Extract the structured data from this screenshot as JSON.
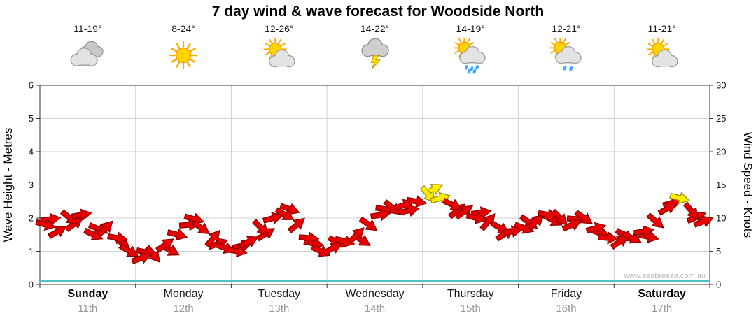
{
  "title": "7 day wind & wave forecast for Woodside North",
  "watermark": "www.seabreeze.com.au",
  "days": [
    {
      "name": "Sunday",
      "date": "11th",
      "temp": "11-19°",
      "icon": "cloudy",
      "weekend": true
    },
    {
      "name": "Monday",
      "date": "12th",
      "temp": "8-24°",
      "icon": "sunny",
      "weekend": false
    },
    {
      "name": "Tuesday",
      "date": "13th",
      "temp": "12-26°",
      "icon": "sun-cloud",
      "weekend": false
    },
    {
      "name": "Wednesday",
      "date": "14th",
      "temp": "14-22°",
      "icon": "storm",
      "weekend": false
    },
    {
      "name": "Thursday",
      "date": "15th",
      "temp": "14-19°",
      "icon": "sun-cloud-showers",
      "weekend": false
    },
    {
      "name": "Friday",
      "date": "16th",
      "temp": "12-21°",
      "icon": "sun-cloud-drizzle",
      "weekend": false
    },
    {
      "name": "Saturday",
      "date": "17th",
      "temp": "11-21°",
      "icon": "sun-cloud",
      "weekend": true
    }
  ],
  "chart_data": {
    "type": "scatter",
    "title": "7 day wind & wave forecast for Woodside North",
    "x_categories": [
      "Sunday",
      "Monday",
      "Tuesday",
      "Wednesday",
      "Thursday",
      "Friday",
      "Saturday"
    ],
    "points_per_day": 8,
    "left_axis": {
      "label": "Wave Height - Metres",
      "range": [
        0,
        6
      ],
      "ticks": [
        0,
        1,
        2,
        3,
        4,
        5,
        6
      ]
    },
    "right_axis": {
      "label": "Wind Speed - Knots",
      "range": [
        0,
        30
      ],
      "ticks": [
        0,
        5,
        10,
        15,
        20,
        25,
        30
      ]
    },
    "series": [
      {
        "name": "Wind Speed",
        "units": "knots",
        "marker": "wind-arrow",
        "values": [
          9,
          8,
          10,
          10.5,
          7.5,
          8.5,
          7,
          5,
          4,
          4.5,
          6,
          7.5,
          9,
          8.5,
          7,
          5.5,
          5,
          6.5,
          8.5,
          10,
          10.5,
          9,
          7,
          5,
          5.5,
          6.5,
          7.5,
          9,
          10.5,
          11.5,
          12,
          12.5,
          13.5,
          13,
          12,
          11,
          10,
          9.5,
          8.5,
          8,
          8.5,
          9.5,
          10.5,
          10,
          9,
          10,
          8.5,
          7,
          6.5,
          7,
          8,
          9.5,
          11.5,
          13,
          11,
          9.5
        ],
        "directions_deg": [
          15,
          -30,
          40,
          -10,
          25,
          -45,
          10,
          30,
          -20,
          50,
          -35,
          15,
          -5,
          35,
          -50,
          20,
          10,
          -25,
          45,
          -15,
          30,
          -40,
          5,
          25,
          -30,
          15,
          -45,
          35,
          -10,
          40,
          -20,
          10,
          50,
          -15,
          25,
          -35,
          15,
          -50,
          30,
          -10,
          20,
          -40,
          10,
          45,
          -25,
          35,
          -15,
          5,
          -35,
          25,
          -10,
          40,
          -30,
          15,
          50,
          -20
        ],
        "strong_indices": [
          32,
          33,
          53
        ]
      },
      {
        "name": "Wave Height",
        "units": "metres",
        "marker": "line",
        "values_constant": 0.1
      }
    ],
    "grid": true,
    "colors": {
      "arrow": "#e60000",
      "arrow_stroke": "#8b0000",
      "arrow_strong": "#ffee00",
      "arrow_strong_stroke": "#998a00",
      "wave_line": "#4fc3c3",
      "grid": "#d0d0d0",
      "axis": "#333333",
      "watermark_text": "#b8b8b8"
    }
  }
}
